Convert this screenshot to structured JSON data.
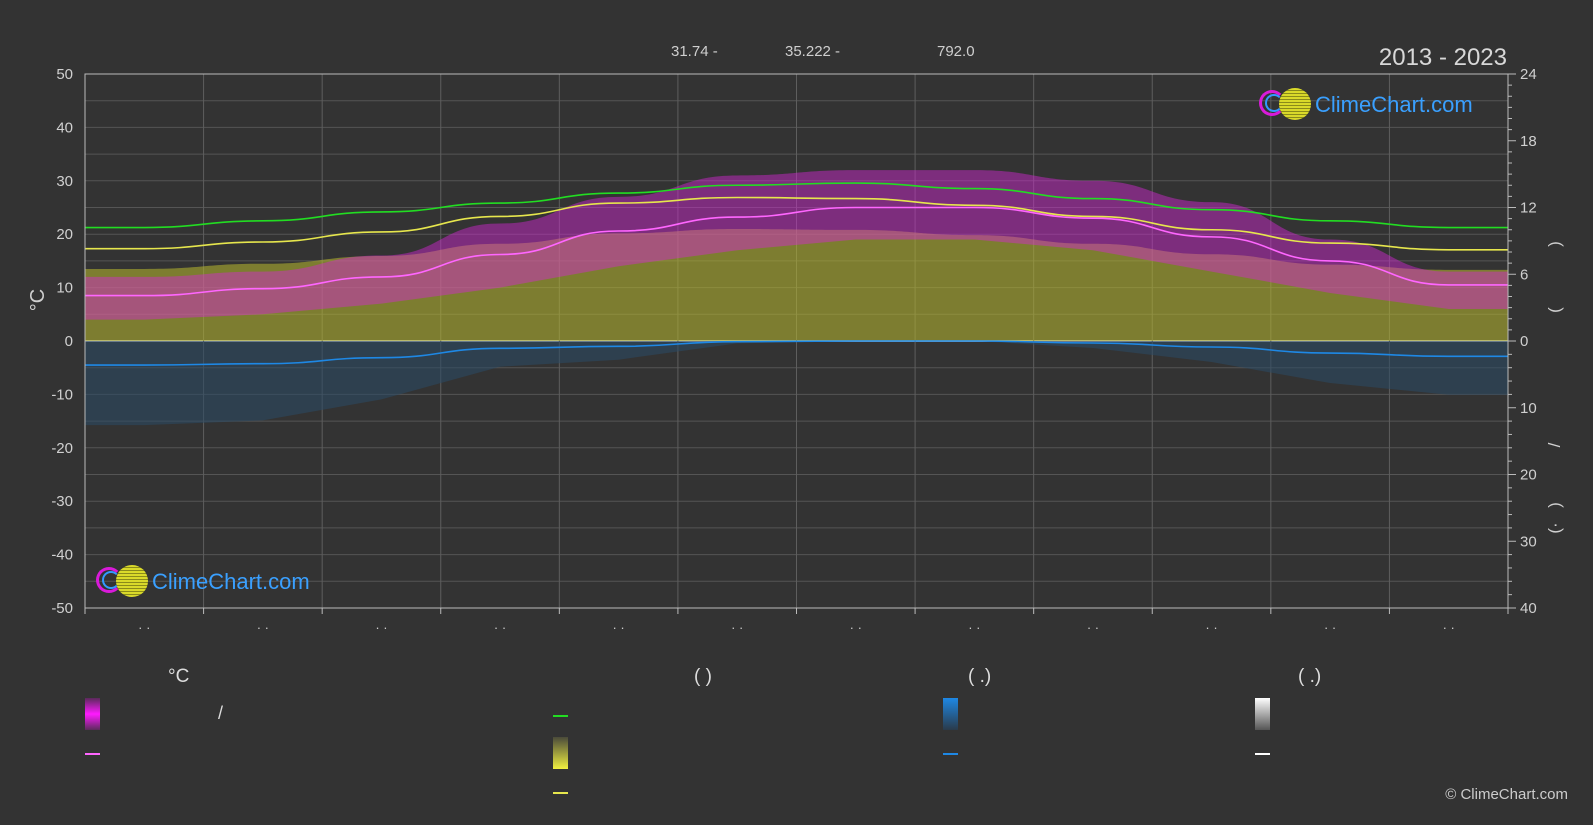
{
  "header": {
    "stat_1": "31.74 -",
    "stat_2": "35.222 -",
    "stat_3": "792.0",
    "period": "2013 - 2023"
  },
  "logo_text": "ClimeChart.com",
  "copyright": "© ClimeChart.com",
  "legend": {
    "temperature_title": "°C",
    "sunshine_title": "(  )",
    "rain_title": "(  .)",
    "snow_title": "(  .)",
    "slash": "/"
  },
  "chart_data": {
    "type": "area",
    "months": 12,
    "categories": [
      "· ·",
      "· ·",
      "· ·",
      "· ·",
      "· ·",
      "· ·",
      "· ·",
      "· ·",
      "· ·",
      "· ·",
      "· ·",
      "· ·"
    ],
    "y_left": {
      "label": "°C",
      "range": [
        -50,
        50
      ],
      "ticks": [
        50,
        40,
        30,
        20,
        10,
        0,
        -10,
        -20,
        -30,
        -40,
        -50
      ]
    },
    "y_right_top": {
      "range": [
        0,
        24
      ],
      "ticks": [
        24,
        18,
        12,
        6,
        0
      ]
    },
    "y_right_bottom": {
      "range": [
        0,
        40
      ],
      "ticks": [
        0,
        10,
        20,
        30,
        40
      ]
    },
    "right_axis_marks": [
      ")",
      "(",
      "/",
      ")",
      "(·"
    ],
    "grid": true,
    "colors": {
      "temp_band": "#d626d6",
      "temp_mean": "#ff66ff",
      "daylight": "#22dd22",
      "sunshine": "#e6e64d",
      "sunshine_area": "#b9b92e",
      "rain": "#1e88e5",
      "snow": "#ffffff"
    },
    "series": [
      {
        "key": "daylight",
        "axis": "hours",
        "values": [
          10.2,
          10.8,
          11.6,
          12.4,
          13.3,
          14.0,
          14.2,
          13.7,
          12.8,
          11.8,
          10.8,
          10.2
        ]
      },
      {
        "key": "sunshine",
        "axis": "hours",
        "values": [
          8.3,
          8.9,
          9.8,
          11.2,
          12.4,
          12.9,
          12.8,
          12.2,
          11.2,
          10.0,
          8.8,
          8.2
        ]
      },
      {
        "key": "temp_mean",
        "axis": "celsius",
        "values": [
          8.5,
          9.8,
          12.0,
          16.2,
          20.6,
          23.2,
          25.0,
          25.0,
          23.0,
          19.5,
          15.0,
          10.5
        ]
      },
      {
        "key": "temp_max",
        "axis": "celsius",
        "values": [
          12,
          13,
          16,
          22,
          27,
          31,
          32,
          32,
          30,
          26,
          19,
          13
        ]
      },
      {
        "key": "temp_min",
        "axis": "celsius",
        "values": [
          4,
          5,
          7,
          10,
          14,
          17,
          19,
          19,
          17,
          13,
          9,
          6
        ]
      },
      {
        "key": "rain_mean",
        "axis": "mm",
        "values": [
          3.6,
          3.4,
          2.5,
          1.1,
          0.8,
          0.1,
          0.0,
          0.0,
          0.3,
          0.9,
          1.8,
          2.3
        ]
      }
    ]
  }
}
